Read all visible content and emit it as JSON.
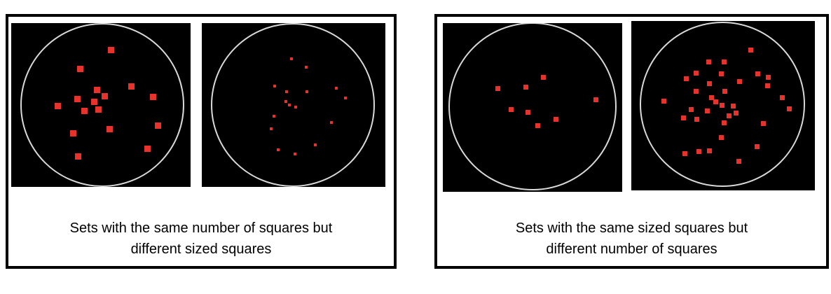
{
  "panels": [
    {
      "caption_line1": "Sets with the same number of squares but",
      "caption_line2": "different sized squares",
      "square_color": "#e8322c",
      "ring_color": "#d9d9d9",
      "background_color": "#000000",
      "stimuli": [
        {
          "square_count": 16,
          "square_size": "large"
        },
        {
          "square_count": 16,
          "square_size": "small"
        }
      ]
    },
    {
      "caption_line1": "Sets with the same sized squares but",
      "caption_line2": "different number of squares",
      "square_color": "#e8322c",
      "ring_color": "#d9d9d9",
      "background_color": "#000000",
      "stimuli": [
        {
          "square_count": 8,
          "square_size": "medium"
        },
        {
          "square_count": 34,
          "square_size": "medium"
        }
      ]
    }
  ]
}
